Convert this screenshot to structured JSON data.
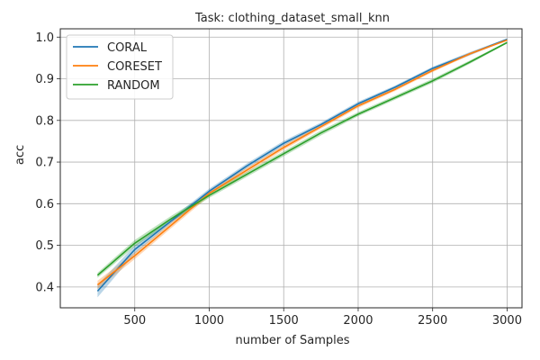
{
  "chart_data": {
    "type": "line",
    "title": "Task: clothing_dataset_small_knn",
    "xlabel": "number of Samples",
    "ylabel": "acc",
    "xlim": [
      0,
      3100
    ],
    "ylim": [
      0.35,
      1.02
    ],
    "xticks": [
      500,
      1000,
      1500,
      2000,
      2500,
      3000
    ],
    "yticks": [
      0.4,
      0.5,
      0.6,
      0.7,
      0.8,
      0.9,
      1.0
    ],
    "grid": true,
    "legend_position": "top-left",
    "x": [
      250,
      500,
      750,
      1000,
      1250,
      1500,
      1750,
      2000,
      2250,
      2500,
      2750,
      3000
    ],
    "series": [
      {
        "name": "CORAL",
        "color": "#1f77b4",
        "values": [
          0.39,
          0.49,
          0.56,
          0.63,
          0.69,
          0.745,
          0.79,
          0.84,
          0.88,
          0.925,
          0.96,
          0.995
        ],
        "band": [
          0.015,
          0.01,
          0.006,
          0.006,
          0.006,
          0.006,
          0.005,
          0.005,
          0.004,
          0.004,
          0.004,
          0.002
        ]
      },
      {
        "name": "CORESET",
        "color": "#ff7f0e",
        "values": [
          0.405,
          0.475,
          0.55,
          0.625,
          0.68,
          0.735,
          0.785,
          0.835,
          0.875,
          0.92,
          0.96,
          0.993
        ],
        "band": [
          0.01,
          0.008,
          0.007,
          0.007,
          0.006,
          0.006,
          0.005,
          0.005,
          0.004,
          0.004,
          0.003,
          0.002
        ]
      },
      {
        "name": "RANDOM",
        "color": "#2ca02c",
        "values": [
          0.428,
          0.505,
          0.565,
          0.62,
          0.67,
          0.72,
          0.77,
          0.815,
          0.855,
          0.895,
          0.94,
          0.987
        ],
        "band": [
          0.006,
          0.008,
          0.007,
          0.006,
          0.006,
          0.006,
          0.006,
          0.005,
          0.005,
          0.005,
          0.004,
          0.002
        ]
      }
    ]
  }
}
